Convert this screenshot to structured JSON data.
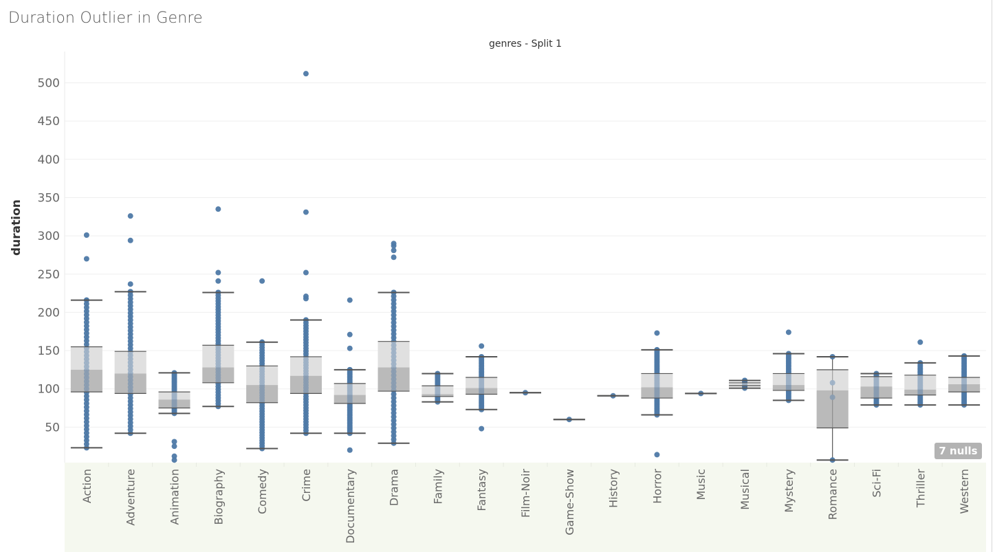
{
  "title": "Duration Outlier in Genre",
  "header": "genres - Split 1",
  "nulls_badge": "7 nulls",
  "chart_data": {
    "type": "boxplot",
    "title": "Duration Outlier in Genre",
    "subtitle": "genres - Split 1",
    "xlabel": "",
    "ylabel": "duration",
    "ylim": [
      0,
      525
    ],
    "yticks": [
      50,
      100,
      150,
      200,
      250,
      300,
      350,
      400,
      450,
      500
    ],
    "grid": true,
    "colors": {
      "point": "#4e79a7",
      "box_upper": "#e0e0e0",
      "box_lower": "#bababa",
      "whisker": "#555555",
      "band": "#f5f8ef"
    },
    "categories": [
      "Action",
      "Adventure",
      "Animation",
      "Biography",
      "Comedy",
      "Crime",
      "Documentary",
      "Drama",
      "Family",
      "Fantasy",
      "Film-Noir",
      "Game-Show",
      "History",
      "Horror",
      "Music",
      "Musical",
      "Mystery",
      "Romance",
      "Sci-Fi",
      "Thriller",
      "Western"
    ],
    "boxes": [
      {
        "genre": "Action",
        "lower_whisker": 23,
        "q1": 96,
        "median": 125,
        "q3": 155,
        "upper_whisker": 216,
        "outliers": [
          301,
          270
        ]
      },
      {
        "genre": "Adventure",
        "lower_whisker": 42,
        "q1": 94,
        "median": 120,
        "q3": 149,
        "upper_whisker": 227,
        "outliers": [
          326,
          294,
          237
        ]
      },
      {
        "genre": "Animation",
        "lower_whisker": 68,
        "q1": 75,
        "median": 86,
        "q3": 96,
        "upper_whisker": 121,
        "outliers": [
          31,
          25,
          12,
          7
        ]
      },
      {
        "genre": "Biography",
        "lower_whisker": 77,
        "q1": 108,
        "median": 128,
        "q3": 157,
        "upper_whisker": 226,
        "outliers": [
          335,
          252,
          241
        ]
      },
      {
        "genre": "Comedy",
        "lower_whisker": 22,
        "q1": 82,
        "median": 105,
        "q3": 130,
        "upper_whisker": 161,
        "outliers": [
          241
        ]
      },
      {
        "genre": "Crime",
        "lower_whisker": 42,
        "q1": 94,
        "median": 117,
        "q3": 142,
        "upper_whisker": 190,
        "outliers": [
          512,
          331,
          252,
          221,
          218
        ]
      },
      {
        "genre": "Documentary",
        "lower_whisker": 42,
        "q1": 81,
        "median": 92,
        "q3": 107,
        "upper_whisker": 125,
        "outliers": [
          216,
          171,
          153,
          20
        ]
      },
      {
        "genre": "Drama",
        "lower_whisker": 29,
        "q1": 97,
        "median": 128,
        "q3": 162,
        "upper_whisker": 226,
        "outliers": [
          290,
          287,
          281,
          272
        ]
      },
      {
        "genre": "Family",
        "lower_whisker": 83,
        "q1": 90,
        "median": 93,
        "q3": 104,
        "upper_whisker": 120,
        "outliers": []
      },
      {
        "genre": "Fantasy",
        "lower_whisker": 73,
        "q1": 93,
        "median": 101,
        "q3": 115,
        "upper_whisker": 142,
        "outliers": [
          156,
          48
        ]
      },
      {
        "genre": "Film-Noir",
        "lower_whisker": 95,
        "q1": 95,
        "median": 95,
        "q3": 95,
        "upper_whisker": 95,
        "outliers": []
      },
      {
        "genre": "Game-Show",
        "lower_whisker": 60,
        "q1": 60,
        "median": 60,
        "q3": 60,
        "upper_whisker": 60,
        "outliers": []
      },
      {
        "genre": "History",
        "lower_whisker": 91,
        "q1": 91,
        "median": 91,
        "q3": 91,
        "upper_whisker": 91,
        "outliers": []
      },
      {
        "genre": "Horror",
        "lower_whisker": 66,
        "q1": 88,
        "median": 102,
        "q3": 120,
        "upper_whisker": 151,
        "outliers": [
          173,
          14
        ]
      },
      {
        "genre": "Music",
        "lower_whisker": 94,
        "q1": 94,
        "median": 94,
        "q3": 94,
        "upper_whisker": 94,
        "outliers": []
      },
      {
        "genre": "Musical",
        "lower_whisker": 101,
        "q1": 104,
        "median": 105,
        "q3": 108,
        "upper_whisker": 111,
        "outliers": []
      },
      {
        "genre": "Mystery",
        "lower_whisker": 85,
        "q1": 98,
        "median": 105,
        "q3": 120,
        "upper_whisker": 146,
        "outliers": [
          174
        ]
      },
      {
        "genre": "Romance",
        "lower_whisker": 7,
        "q1": 49,
        "median": 98,
        "q3": 125,
        "upper_whisker": 142,
        "outliers": [],
        "points": [
          142,
          108,
          89,
          7
        ]
      },
      {
        "genre": "Sci-Fi",
        "lower_whisker": 79,
        "q1": 88,
        "median": 103,
        "q3": 116,
        "upper_whisker": 120,
        "outliers": []
      },
      {
        "genre": "Thriller",
        "lower_whisker": 79,
        "q1": 92,
        "median": 99,
        "q3": 118,
        "upper_whisker": 134,
        "outliers": [
          161
        ]
      },
      {
        "genre": "Western",
        "lower_whisker": 79,
        "q1": 96,
        "median": 106,
        "q3": 115,
        "upper_whisker": 143,
        "outliers": []
      }
    ],
    "null_count": 7
  }
}
